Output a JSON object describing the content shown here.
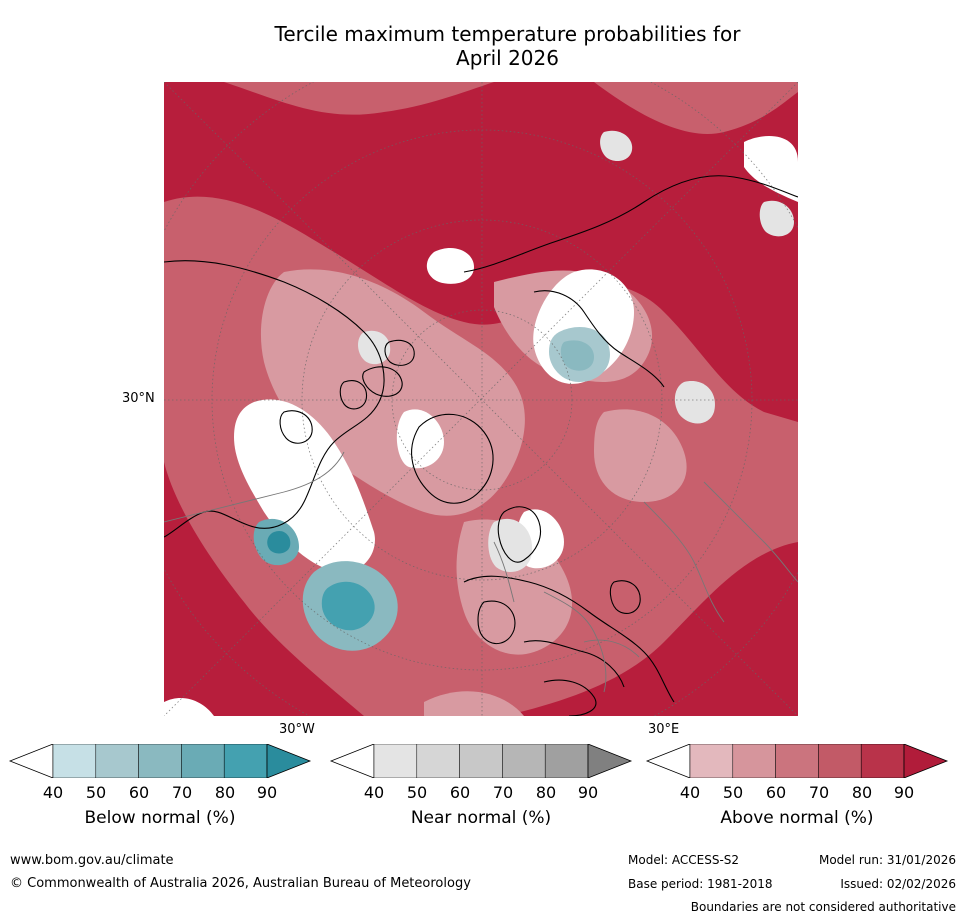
{
  "title": {
    "line1": "Tercile maximum temperature probabilities for",
    "line2": "April 2026"
  },
  "map": {
    "lat_label": "30°N",
    "lon_label_left": "30°W",
    "lon_label_right": "30°E",
    "colors": {
      "below": [
        "#ffffff",
        "#c6e0e6",
        "#a7c8ce",
        "#8ab9c0",
        "#6aabb5",
        "#44a1b0",
        "#2a8c9d"
      ],
      "near": [
        "#ffffff",
        "#e4e4e4",
        "#d6d6d6",
        "#c8c8c8",
        "#b6b6b6",
        "#a0a0a0",
        "#808080"
      ],
      "above": [
        "#ffffff",
        "#e3b8bd",
        "#d6959c",
        "#cb747e",
        "#c25a67",
        "#b9334a",
        "#b11c3a"
      ]
    }
  },
  "colorbars": [
    {
      "id": "below",
      "label": "Below normal (%)",
      "ticks": [
        "40",
        "50",
        "60",
        "70",
        "80",
        "90"
      ]
    },
    {
      "id": "near",
      "label": "Near normal (%)",
      "ticks": [
        "40",
        "50",
        "60",
        "70",
        "80",
        "90"
      ]
    },
    {
      "id": "above",
      "label": "Above normal (%)",
      "ticks": [
        "40",
        "50",
        "60",
        "70",
        "80",
        "90"
      ]
    }
  ],
  "footer": {
    "website": "www.bom.gov.au/climate",
    "copyright": "© Commonwealth of Australia 2026, Australian Bureau of Meteorology",
    "model": "Model: ACCESS-S2",
    "base_period": "Base period: 1981-2018",
    "model_run": "Model run: 31/01/2026",
    "issued": "Issued: 02/02/2026",
    "disclaimer": "Boundaries are not considered authoritative"
  }
}
